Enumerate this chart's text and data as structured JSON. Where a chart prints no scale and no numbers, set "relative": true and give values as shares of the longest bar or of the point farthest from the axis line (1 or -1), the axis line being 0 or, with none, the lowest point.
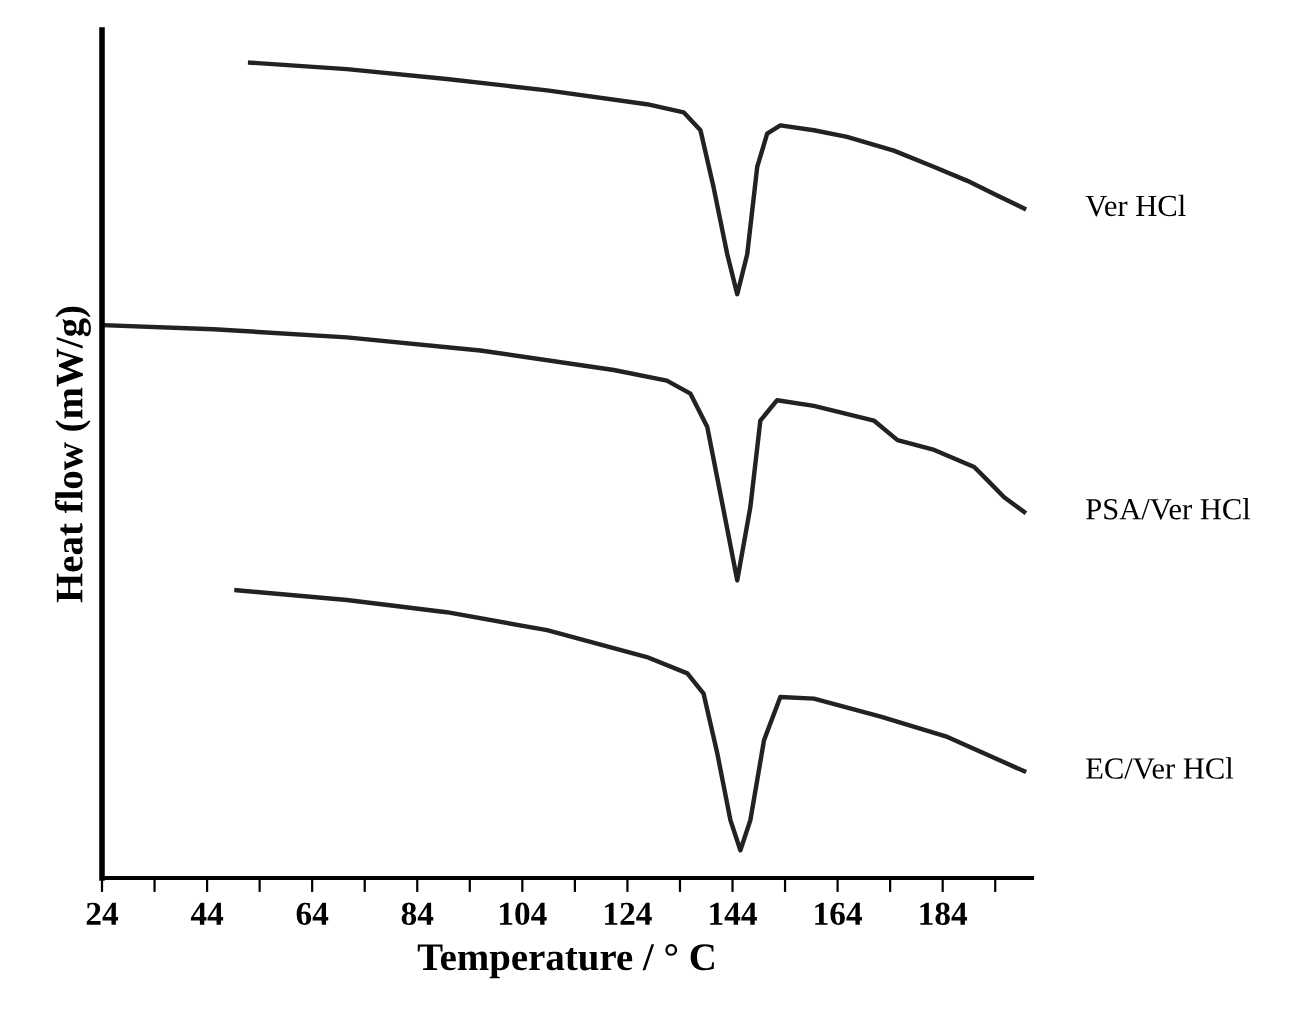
{
  "chart_data": {
    "type": "line",
    "relative": true,
    "xlabel": "Temperature / ° C",
    "ylabel": "Heat flow (mW/g)",
    "xlim": [
      24,
      201
    ],
    "xticks": [
      24,
      {
        "value": 34,
        "label": null
      },
      44,
      {
        "value": 54,
        "label": null
      },
      64,
      {
        "value": 74,
        "label": null
      },
      84,
      {
        "value": 94,
        "label": null
      },
      104,
      {
        "value": 114,
        "label": null
      },
      124,
      {
        "value": 134,
        "label": null
      },
      144,
      {
        "value": 154,
        "label": null
      },
      164,
      {
        "value": 174,
        "label": null
      },
      184,
      {
        "value": 194,
        "label": null
      }
    ],
    "legend": false,
    "grid": false,
    "marker": "none",
    "line_style": "solid",
    "series": [
      {
        "name": "Ver HCl",
        "color": "#222222",
        "x": [
          52.2,
          70.6,
          89.6,
          108.7,
          127.7,
          134.7,
          137.9,
          140.4,
          143,
          144.9,
          146.8,
          148.7,
          150.6,
          153.1,
          159.5,
          165.8,
          174.7,
          182.4,
          188.7,
          193.8,
          199.5
        ],
        "values": [
          1.0,
          0.992,
          0.98,
          0.966,
          0.949,
          0.939,
          0.917,
          0.847,
          0.765,
          0.716,
          0.765,
          0.872,
          0.913,
          0.923,
          0.917,
          0.909,
          0.892,
          0.872,
          0.855,
          0.839,
          0.821
        ]
      },
      {
        "name": "PSA/Ver HCl",
        "color": "#222222",
        "x": [
          24.3,
          45.2,
          70.6,
          96,
          121.4,
          131.5,
          136,
          139.2,
          141.7,
          144.9,
          147.4,
          149.3,
          152.5,
          159.5,
          170.9,
          175.4,
          182.4,
          190,
          192.5,
          195.7,
          199.5
        ],
        "values": [
          0.678,
          0.673,
          0.663,
          0.647,
          0.623,
          0.61,
          0.594,
          0.553,
          0.471,
          0.365,
          0.455,
          0.561,
          0.586,
          0.579,
          0.561,
          0.537,
          0.525,
          0.504,
          0.488,
          0.467,
          0.449
        ]
      },
      {
        "name": "EC/Ver HCl",
        "color": "#222222",
        "x": [
          49.6,
          70.6,
          89.6,
          108.7,
          127.7,
          135.4,
          138.5,
          141.1,
          143.6,
          145.5,
          147.4,
          150,
          153.1,
          159.5,
          172.2,
          184.9,
          199.5
        ],
        "values": [
          0.353,
          0.341,
          0.326,
          0.304,
          0.271,
          0.251,
          0.226,
          0.153,
          0.071,
          0.034,
          0.071,
          0.169,
          0.222,
          0.22,
          0.198,
          0.173,
          0.131
        ]
      }
    ]
  }
}
